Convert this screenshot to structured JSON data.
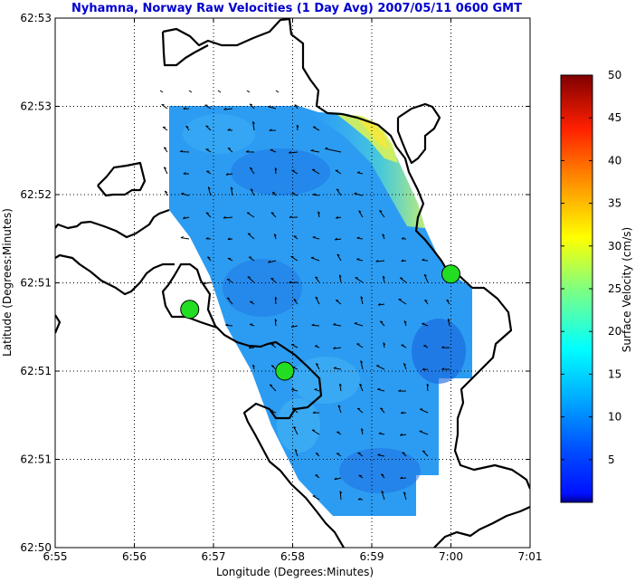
{
  "chart_data": {
    "type": "heatmap",
    "title": "Nyhamna, Norway Raw Velocities (1 Day Avg) 2007/05/11 0600 GMT",
    "xlabel": "Longitude (Degrees:Minutes)",
    "ylabel": "Latitude (Degrees:Minutes)",
    "x_ticks": [
      "6:55",
      "6:56",
      "6:57",
      "6:58",
      "6:59",
      "7:00",
      "7:01"
    ],
    "y_ticks": [
      "62:53",
      "62:53",
      "62:52",
      "62:51",
      "62:51",
      "62:51",
      "62:50"
    ],
    "grid": true,
    "colorbar": {
      "label": "Surface Velocity (cm/s)",
      "ticks": [
        5,
        10,
        15,
        20,
        25,
        30,
        35,
        40,
        45,
        50
      ],
      "range": [
        0,
        50
      ],
      "colormap": "jet"
    },
    "stations": [
      {
        "lon_min": 56.7,
        "lat_index": 3.3
      },
      {
        "lon_min": 57.9,
        "lat_index": 4.0
      },
      {
        "lon_min": 60.0,
        "lat_index": 2.9
      }
    ],
    "colors": {
      "title": "#0000cc",
      "station": "#22dd22",
      "coastline": "#000000"
    }
  }
}
